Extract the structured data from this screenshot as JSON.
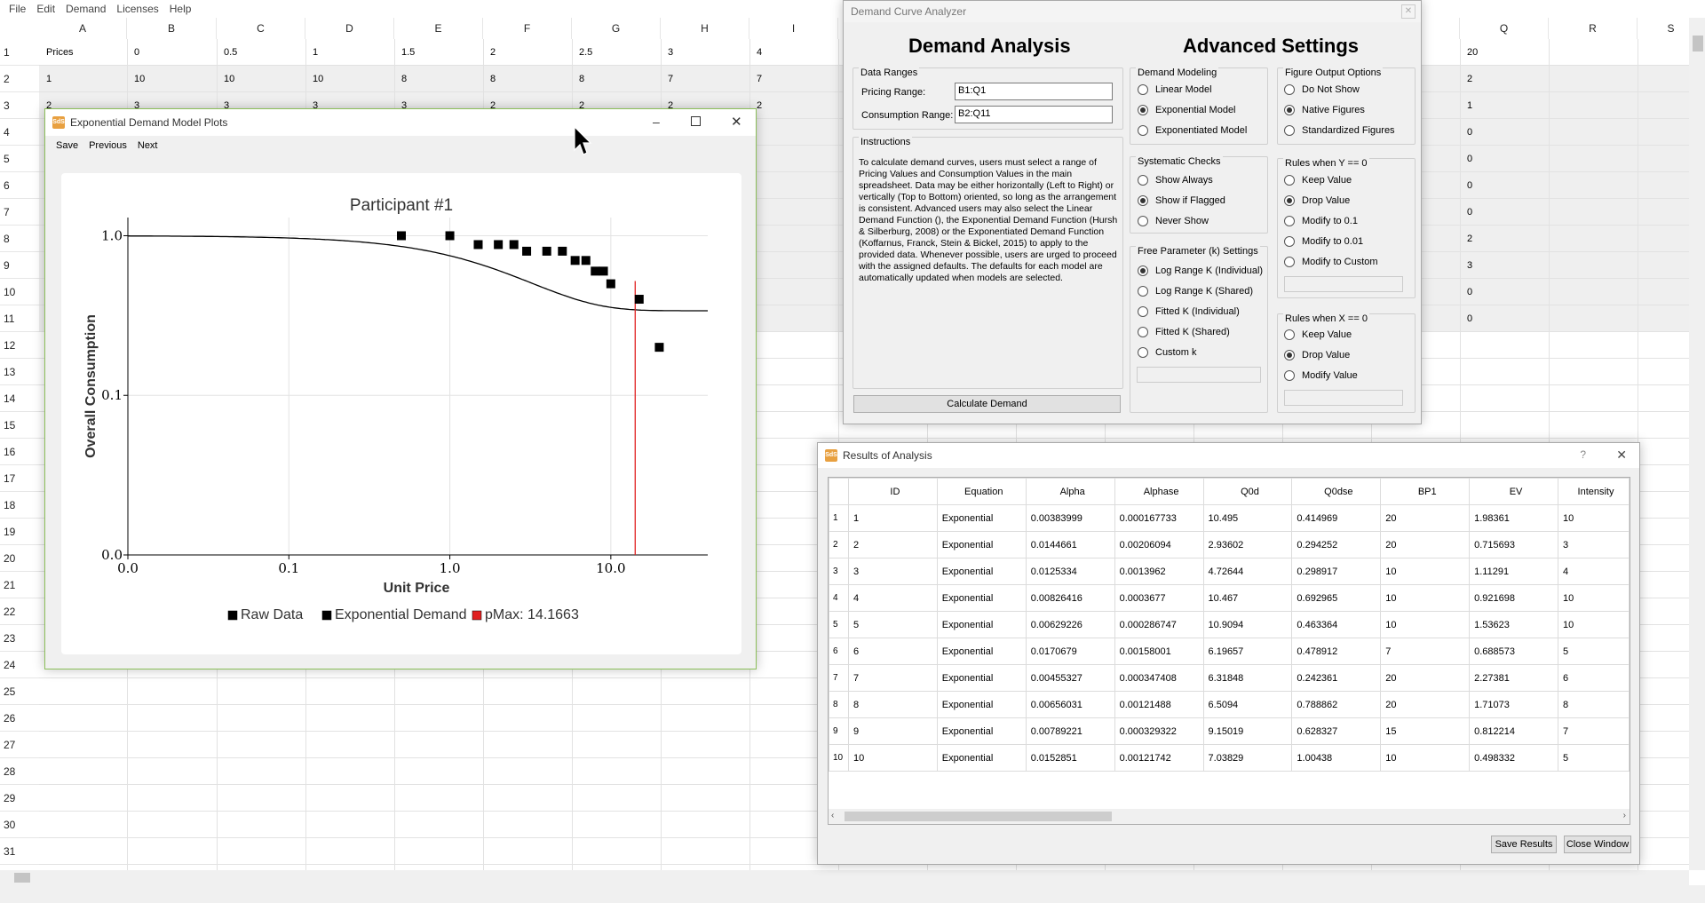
{
  "menu": [
    "File",
    "Edit",
    "Demand",
    "Licenses",
    "Help"
  ],
  "spreadsheet": {
    "columns": [
      "A",
      "B",
      "C",
      "D",
      "E",
      "F",
      "G",
      "H",
      "I",
      "",
      "",
      "",
      "",
      "",
      "",
      "",
      "Q",
      "R",
      "S"
    ],
    "rows": [
      {
        "n": "1",
        "cells": [
          "Prices",
          "0",
          "0.5",
          "1",
          "1.5",
          "2",
          "2.5",
          "3",
          "4"
        ],
        "q": "20"
      },
      {
        "n": "2",
        "cells": [
          "1",
          "10",
          "10",
          "10",
          "8",
          "8",
          "8",
          "7",
          "7"
        ],
        "q": "2"
      },
      {
        "n": "3",
        "cells": [
          "2",
          "3",
          "3",
          "3",
          "3",
          "2",
          "2",
          "2",
          "2"
        ],
        "q": "1"
      },
      {
        "n": "4",
        "cells": [],
        "q": "0"
      },
      {
        "n": "5",
        "cells": [],
        "q": "0"
      },
      {
        "n": "6",
        "cells": [],
        "q": "0"
      },
      {
        "n": "7",
        "cells": [],
        "q": "0"
      },
      {
        "n": "8",
        "cells": [],
        "q": "2"
      },
      {
        "n": "9",
        "cells": [],
        "q": "3"
      },
      {
        "n": "10",
        "cells": [],
        "q": "0"
      },
      {
        "n": "11",
        "cells": [],
        "q": "0"
      },
      {
        "n": "12",
        "cells": [],
        "q": ""
      },
      {
        "n": "13",
        "cells": [],
        "q": ""
      },
      {
        "n": "14",
        "cells": [],
        "q": ""
      },
      {
        "n": "15",
        "cells": [],
        "q": ""
      },
      {
        "n": "16",
        "cells": [],
        "q": ""
      },
      {
        "n": "17",
        "cells": [],
        "q": ""
      },
      {
        "n": "18",
        "cells": [],
        "q": ""
      },
      {
        "n": "19",
        "cells": [],
        "q": ""
      },
      {
        "n": "20",
        "cells": [],
        "q": ""
      },
      {
        "n": "21",
        "cells": [],
        "q": ""
      },
      {
        "n": "22",
        "cells": [],
        "q": ""
      },
      {
        "n": "23",
        "cells": [],
        "q": ""
      },
      {
        "n": "24",
        "cells": [],
        "q": ""
      },
      {
        "n": "25",
        "cells": [],
        "q": ""
      },
      {
        "n": "26",
        "cells": [],
        "q": ""
      },
      {
        "n": "27",
        "cells": [],
        "q": ""
      },
      {
        "n": "28",
        "cells": [],
        "q": ""
      },
      {
        "n": "29",
        "cells": [],
        "q": ""
      },
      {
        "n": "30",
        "cells": [],
        "q": ""
      },
      {
        "n": "31",
        "cells": [],
        "q": ""
      }
    ]
  },
  "analyzer": {
    "title": "Demand Curve Analyzer",
    "heading_left": "Demand Analysis",
    "heading_right": "Advanced Settings",
    "data_ranges": "Data Ranges",
    "pricing_label": "Pricing Range:",
    "pricing_value": "B1:Q1",
    "consumption_label": "Consumption Range:",
    "consumption_value": "B2:Q11",
    "instructions_title": "Instructions",
    "instructions": "To calculate demand curves, users must select a range of Pricing Values and Consumption Values in the main spreadsheet. Data may be either horizontally (Left to Right) or vertically (Top to Bottom) oriented, so long as the arrangement is consistent. Advanced users may also select the Linear Demand Function (), the Exponential Demand Function (Hursh & Silberburg, 2008) or the Exponentiated Demand Function (Koffarnus, Franck, Stein & Bickel, 2015) to apply to the provided data. Whenever possible, users are urged to proceed with the assigned defaults. The defaults for each model are automatically updated when models are selected.",
    "calc_button": "Calculate Demand",
    "demand_modeling": {
      "title": "Demand Modeling",
      "options": [
        "Linear Model",
        "Exponential Model",
        "Exponentiated Model"
      ],
      "selected": 1
    },
    "systematic": {
      "title": "Systematic Checks",
      "options": [
        "Show Always",
        "Show if Flagged",
        "Never Show"
      ],
      "selected": 1
    },
    "freeparam": {
      "title": "Free Parameter (k) Settings",
      "options": [
        "Log Range K (Individual)",
        "Log Range K (Shared)",
        "Fitted K (Individual)",
        "Fitted K (Shared)",
        "Custom k"
      ],
      "selected": 0
    },
    "figure": {
      "title": "Figure Output Options",
      "options": [
        "Do Not Show",
        "Native Figures",
        "Standardized Figures"
      ],
      "selected": 1
    },
    "rules_y": {
      "title": "Rules when Y == 0",
      "options": [
        "Keep Value",
        "Drop Value",
        "Modify to 0.1",
        "Modify to 0.01",
        "Modify to Custom"
      ],
      "selected": 1
    },
    "rules_x": {
      "title": "Rules when X == 0",
      "options": [
        "Keep Value",
        "Drop Value",
        "Modify Value"
      ],
      "selected": 1
    }
  },
  "plots": {
    "title": "Exponential Demand Model Plots",
    "menu": [
      "Save",
      "Previous",
      "Next"
    ],
    "app_icon": "SdS"
  },
  "chart_data": {
    "type": "scatter",
    "title": "Participant #1",
    "xlabel": "Unit Price",
    "ylabel": "Overall Consumption",
    "x_scale": "log",
    "y_scale": "log",
    "x_ticks": [
      "0.0",
      "0.1",
      "1.0",
      "10.0"
    ],
    "y_ticks": [
      "0.0",
      "0.1",
      "1.0"
    ],
    "legend": [
      "Raw Data",
      "Exponential Demand",
      "pMax: 14.1663"
    ],
    "legend_position": "bottom",
    "series": [
      {
        "name": "Raw Data",
        "x": [
          0.5,
          1,
          1.5,
          2,
          2.5,
          3,
          4,
          5,
          6,
          7,
          8,
          9,
          10,
          15,
          20
        ],
        "y": [
          1.0,
          1.0,
          0.88,
          0.88,
          0.88,
          0.8,
          0.8,
          0.8,
          0.7,
          0.7,
          0.6,
          0.6,
          0.5,
          0.4,
          0.2
        ]
      },
      {
        "name": "Exponential Demand",
        "type": "line",
        "k_shape": "curve from 1.0 falling past x=20"
      }
    ],
    "pmax": 14.1663,
    "colors": {
      "points": "#000000",
      "line": "#000000",
      "pmax": "#e02020"
    }
  },
  "results": {
    "title": "Results of Analysis",
    "columns": [
      "ID",
      "Equation",
      "Alpha",
      "Alphase",
      "Q0d",
      "Q0dse",
      "BP1",
      "EV",
      "Intensity"
    ],
    "rows": [
      [
        "1",
        "Exponential",
        "0.00383999",
        "0.000167733",
        "10.495",
        "0.414969",
        "20",
        "1.98361",
        "10"
      ],
      [
        "2",
        "Exponential",
        "0.0144661",
        "0.00206094",
        "2.93602",
        "0.294252",
        "20",
        "0.715693",
        "3"
      ],
      [
        "3",
        "Exponential",
        "0.0125334",
        "0.0013962",
        "4.72644",
        "0.298917",
        "10",
        "1.11291",
        "4"
      ],
      [
        "4",
        "Exponential",
        "0.00826416",
        "0.0003677",
        "10.467",
        "0.692965",
        "10",
        "0.921698",
        "10"
      ],
      [
        "5",
        "Exponential",
        "0.00629226",
        "0.000286747",
        "10.9094",
        "0.463364",
        "10",
        "1.53623",
        "10"
      ],
      [
        "6",
        "Exponential",
        "0.0170679",
        "0.00158001",
        "6.19657",
        "0.478912",
        "7",
        "0.688573",
        "5"
      ],
      [
        "7",
        "Exponential",
        "0.00455327",
        "0.000347408",
        "6.31848",
        "0.242361",
        "20",
        "2.27381",
        "6"
      ],
      [
        "8",
        "Exponential",
        "0.00656031",
        "0.00121488",
        "6.5094",
        "0.788862",
        "20",
        "1.71073",
        "8"
      ],
      [
        "9",
        "Exponential",
        "0.00789221",
        "0.000329322",
        "9.15019",
        "0.628327",
        "15",
        "0.812214",
        "7"
      ],
      [
        "10",
        "Exponential",
        "0.0152851",
        "0.00121742",
        "7.03829",
        "1.00438",
        "10",
        "0.498332",
        "5"
      ]
    ],
    "save_button": "Save Results",
    "close_button": "Close Window"
  }
}
